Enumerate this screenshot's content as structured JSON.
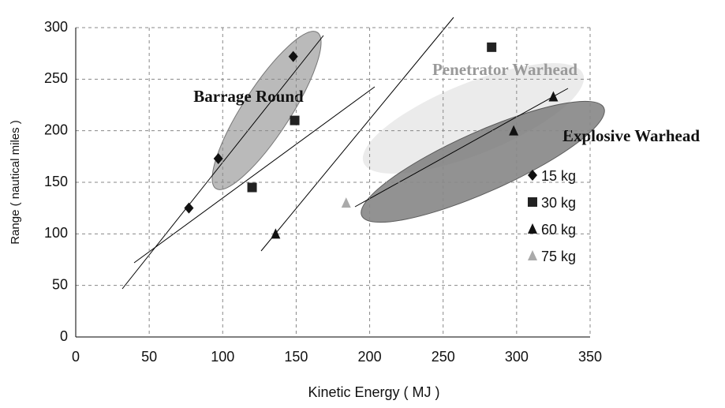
{
  "chart_data": {
    "type": "scatter",
    "x_label": "Kinetic Energy ( MJ )",
    "y_label": "Range ( nautical miles )",
    "annotations": [
      "Barrage Round",
      "Penetrator Warhead",
      "Explosive Warhead"
    ],
    "xlim": [
      0,
      350
    ],
    "xticks": [
      0,
      50,
      100,
      150,
      200,
      250,
      300,
      350
    ],
    "ylim": [
      0,
      300
    ],
    "yticks": [
      0,
      50,
      100,
      150,
      200,
      250,
      300
    ],
    "grid": true,
    "series": [
      {
        "name": "15 kg",
        "color": "#111111",
        "marker": "diamond",
        "x": [
          77,
          97,
          148
        ],
        "values": [
          125,
          173,
          272
        ]
      },
      {
        "name": "30 kg",
        "color": "#222222",
        "marker": "square",
        "x": [
          120,
          149,
          283
        ],
        "values": [
          145,
          210,
          281
        ]
      },
      {
        "name": "60 kg",
        "color": "#111111",
        "marker": "triangle",
        "x": [
          136,
          298,
          325
        ],
        "values": [
          100,
          200,
          233
        ]
      },
      {
        "name": "75 kg",
        "color": "#aaaaaa",
        "marker": "triangle",
        "x": [
          184
        ],
        "values": [
          130
        ]
      }
    ]
  }
}
